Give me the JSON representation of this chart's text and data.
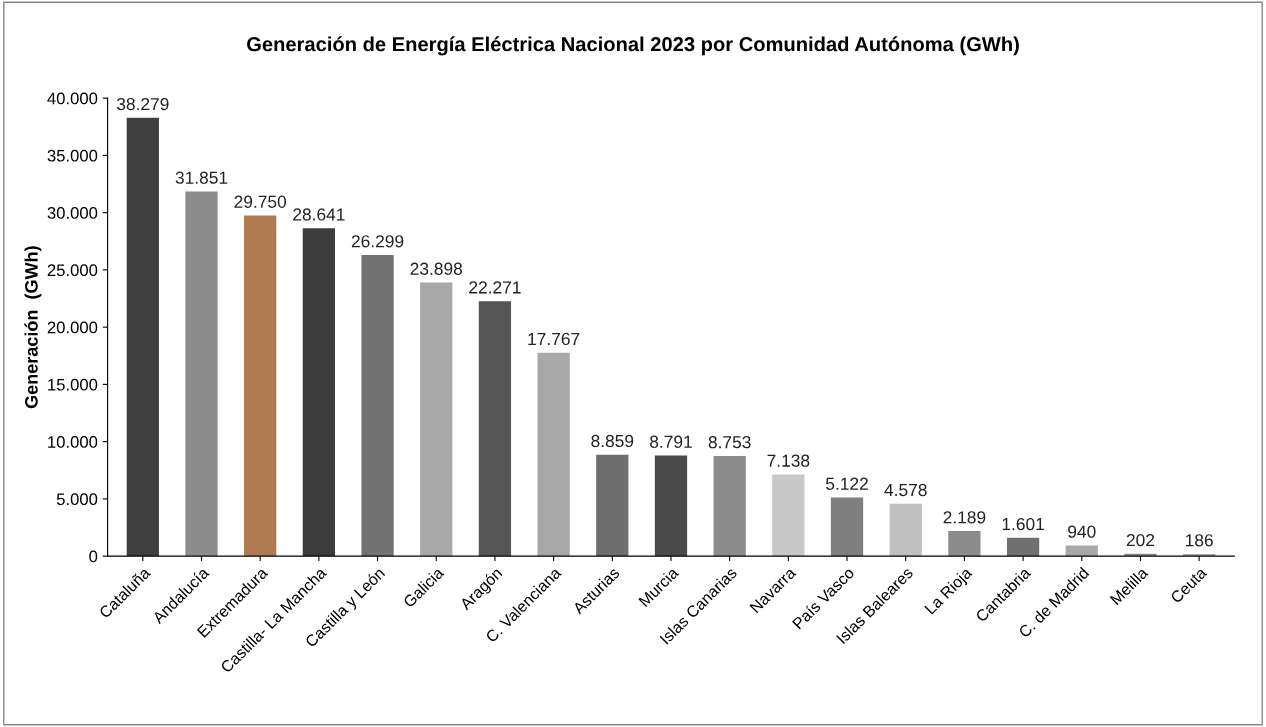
{
  "chart_data": {
    "type": "bar",
    "title": "Generación de Energía Eléctrica Nacional 2023 por Comunidad Autónoma (GWh)",
    "ylabel": "Generación  (GWh)",
    "categories": [
      "Cataluña",
      "Andalucía",
      "Extremadura",
      "Castilla- La Mancha",
      "Castilla y León",
      "Galicia",
      "Aragón",
      "C. Valenciana",
      "Asturias",
      "Murcia",
      "Islas Canarias",
      "Navarra",
      "País Vasco",
      "Islas Baleares",
      "La Rioja",
      "Cantabria",
      "C. de Madrid",
      "Melilla",
      "Ceuta"
    ],
    "values": [
      38279,
      31851,
      29750,
      28641,
      26299,
      23898,
      22271,
      17767,
      8859,
      8791,
      8753,
      7138,
      5122,
      4578,
      2189,
      1601,
      940,
      202,
      186
    ],
    "value_labels": [
      "38.279",
      "31.851",
      "29.750",
      "28.641",
      "26.299",
      "23.898",
      "22.271",
      "17.767",
      "8.859",
      "8.791",
      "8.753",
      "7.138",
      "5.122",
      "4.578",
      "2.189",
      "1.601",
      "940",
      "202",
      "186"
    ],
    "colors": [
      "#404040",
      "#8c8c8c",
      "#b07a50",
      "#3c3c3c",
      "#727272",
      "#a8a8a8",
      "#555555",
      "#a8a8a8",
      "#6e6e6e",
      "#4a4a4a",
      "#8c8c8c",
      "#c8c8c8",
      "#7f7f7f",
      "#bfbfbf",
      "#8c8c8c",
      "#707070",
      "#a8a8a8",
      "#8c8c8c",
      "#a8a8a8"
    ],
    "ylim": [
      0,
      40000
    ],
    "yticks": [
      0,
      {
        "value": 5000,
        "label": "5.000"
      },
      {
        "value": 10000,
        "label": "10.000"
      },
      {
        "value": 15000,
        "label": "15.000"
      },
      {
        "value": 20000,
        "label": "20.000"
      },
      {
        "value": 25000,
        "label": "25.000"
      },
      {
        "value": 30000,
        "label": "30.000"
      },
      {
        "value": 35000,
        "label": "35.000"
      },
      {
        "value": 40000,
        "label": "40.000"
      }
    ],
    "grid": false,
    "legend": false
  }
}
